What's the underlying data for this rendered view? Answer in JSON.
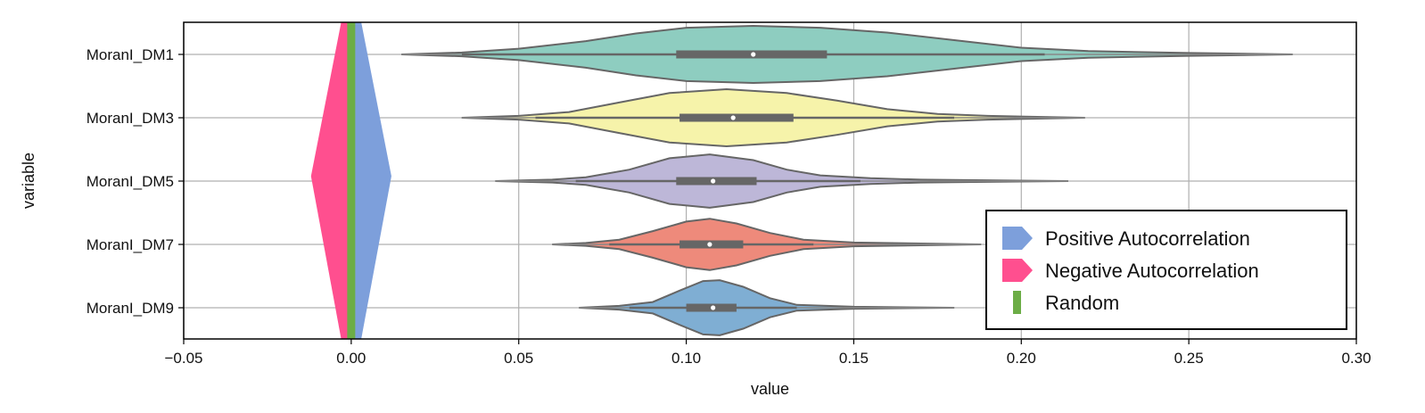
{
  "chart_data": {
    "type": "violin",
    "orientation": "horizontal",
    "xlabel": "value",
    "ylabel": "variable",
    "xlim": [
      -0.05,
      0.3
    ],
    "xticks": [
      -0.05,
      0.0,
      0.05,
      0.1,
      0.15,
      0.2,
      0.25,
      0.3
    ],
    "xtick_labels": [
      "−0.05",
      "0.00",
      "0.05",
      "0.10",
      "0.15",
      "0.20",
      "0.25",
      "0.30"
    ],
    "grid": true,
    "categories": [
      "MoranI_DM1",
      "MoranI_DM3",
      "MoranI_DM5",
      "MoranI_DM7",
      "MoranI_DM9"
    ],
    "series": [
      {
        "category": "MoranI_DM1",
        "color": "#8ecdc0",
        "min": 0.015,
        "q1": 0.097,
        "median": 0.12,
        "q3": 0.142,
        "max": 0.281,
        "whisker_low": 0.033,
        "whisker_high": 0.207,
        "density": [
          [
            0.015,
            0.0
          ],
          [
            0.033,
            0.02
          ],
          [
            0.05,
            0.06
          ],
          [
            0.07,
            0.14
          ],
          [
            0.085,
            0.22
          ],
          [
            0.1,
            0.28
          ],
          [
            0.12,
            0.3
          ],
          [
            0.14,
            0.28
          ],
          [
            0.16,
            0.23
          ],
          [
            0.18,
            0.15
          ],
          [
            0.2,
            0.07
          ],
          [
            0.22,
            0.035
          ],
          [
            0.25,
            0.015
          ],
          [
            0.281,
            0.0
          ]
        ]
      },
      {
        "category": "MoranI_DM3",
        "color": "#f6f3aa",
        "min": 0.033,
        "q1": 0.098,
        "median": 0.114,
        "q3": 0.132,
        "max": 0.219,
        "whisker_low": 0.055,
        "whisker_high": 0.18,
        "density": [
          [
            0.033,
            0.0
          ],
          [
            0.05,
            0.02
          ],
          [
            0.065,
            0.06
          ],
          [
            0.08,
            0.16
          ],
          [
            0.095,
            0.26
          ],
          [
            0.112,
            0.3
          ],
          [
            0.13,
            0.26
          ],
          [
            0.145,
            0.18
          ],
          [
            0.16,
            0.09
          ],
          [
            0.175,
            0.04
          ],
          [
            0.19,
            0.02
          ],
          [
            0.219,
            0.0
          ]
        ]
      },
      {
        "category": "MoranI_DM5",
        "color": "#bdb7d8",
        "min": 0.043,
        "q1": 0.097,
        "median": 0.108,
        "q3": 0.121,
        "max": 0.214,
        "whisker_low": 0.067,
        "whisker_high": 0.152,
        "density": [
          [
            0.043,
            0.0
          ],
          [
            0.06,
            0.015
          ],
          [
            0.07,
            0.04
          ],
          [
            0.083,
            0.12
          ],
          [
            0.095,
            0.24
          ],
          [
            0.107,
            0.28
          ],
          [
            0.12,
            0.22
          ],
          [
            0.13,
            0.12
          ],
          [
            0.14,
            0.06
          ],
          [
            0.155,
            0.03
          ],
          [
            0.17,
            0.015
          ],
          [
            0.214,
            0.0
          ]
        ]
      },
      {
        "category": "MoranI_DM7",
        "color": "#ee8a7b",
        "min": 0.06,
        "q1": 0.098,
        "median": 0.107,
        "q3": 0.117,
        "max": 0.188,
        "whisker_low": 0.077,
        "whisker_high": 0.138,
        "density": [
          [
            0.06,
            0.0
          ],
          [
            0.07,
            0.015
          ],
          [
            0.08,
            0.05
          ],
          [
            0.09,
            0.14
          ],
          [
            0.1,
            0.24
          ],
          [
            0.107,
            0.27
          ],
          [
            0.115,
            0.22
          ],
          [
            0.125,
            0.12
          ],
          [
            0.135,
            0.05
          ],
          [
            0.15,
            0.02
          ],
          [
            0.188,
            0.0
          ]
        ]
      },
      {
        "category": "MoranI_DM9",
        "color": "#7faed3",
        "min": 0.068,
        "q1": 0.1,
        "median": 0.108,
        "q3": 0.115,
        "max": 0.18,
        "whisker_low": 0.083,
        "whisker_high": 0.133,
        "density": [
          [
            0.068,
            0.0
          ],
          [
            0.08,
            0.02
          ],
          [
            0.09,
            0.06
          ],
          [
            0.098,
            0.18
          ],
          [
            0.105,
            0.28
          ],
          [
            0.11,
            0.29
          ],
          [
            0.117,
            0.22
          ],
          [
            0.125,
            0.1
          ],
          [
            0.133,
            0.03
          ],
          [
            0.15,
            0.01
          ],
          [
            0.18,
            0.0
          ]
        ]
      }
    ],
    "overlay_shapes": [
      {
        "name": "Negative Autocorrelation",
        "color": "#ff4f8f",
        "x": -0.003,
        "x_tip": -0.012
      },
      {
        "name": "Positive Autocorrelation",
        "color": "#7d9fdb",
        "x": 0.003,
        "x_tip": 0.012
      },
      {
        "name": "Random",
        "color": "#6cad46",
        "x": 0.0
      }
    ],
    "legend": {
      "position": "lower right",
      "entries": [
        {
          "label": "Positive Autocorrelation",
          "color": "#7d9fdb",
          "marker": "arrow"
        },
        {
          "label": "Negative Autocorrelation",
          "color": "#ff4f8f",
          "marker": "arrow"
        },
        {
          "label": "Random",
          "color": "#6cad46",
          "marker": "bar"
        }
      ]
    }
  }
}
